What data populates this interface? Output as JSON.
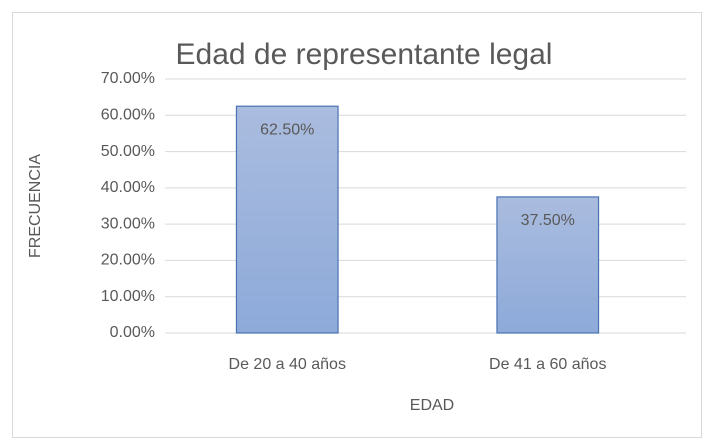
{
  "chart_data": {
    "type": "bar",
    "title": "Edad de representante legal",
    "categories": [
      "De 20 a 40 años",
      "De 41 a 60 años"
    ],
    "values": [
      62.5,
      37.5
    ],
    "value_labels": [
      "62.50%",
      "37.50%"
    ],
    "color": "#9bb1da",
    "xlabel": "EDAD",
    "ylabel": "FRECUENCIA",
    "ylim": [
      0,
      70
    ],
    "yticks": [
      {
        "value": 0,
        "label": "0.00%"
      },
      {
        "value": 10,
        "label": "10.00%"
      },
      {
        "value": 20,
        "label": "20.00%"
      },
      {
        "value": 30,
        "label": "30.00%"
      },
      {
        "value": 40,
        "label": "40.00%"
      },
      {
        "value": 50,
        "label": "50.00%"
      },
      {
        "value": 60,
        "label": "60.00%"
      },
      {
        "value": 70,
        "label": "70.00%"
      }
    ],
    "grid": true
  }
}
